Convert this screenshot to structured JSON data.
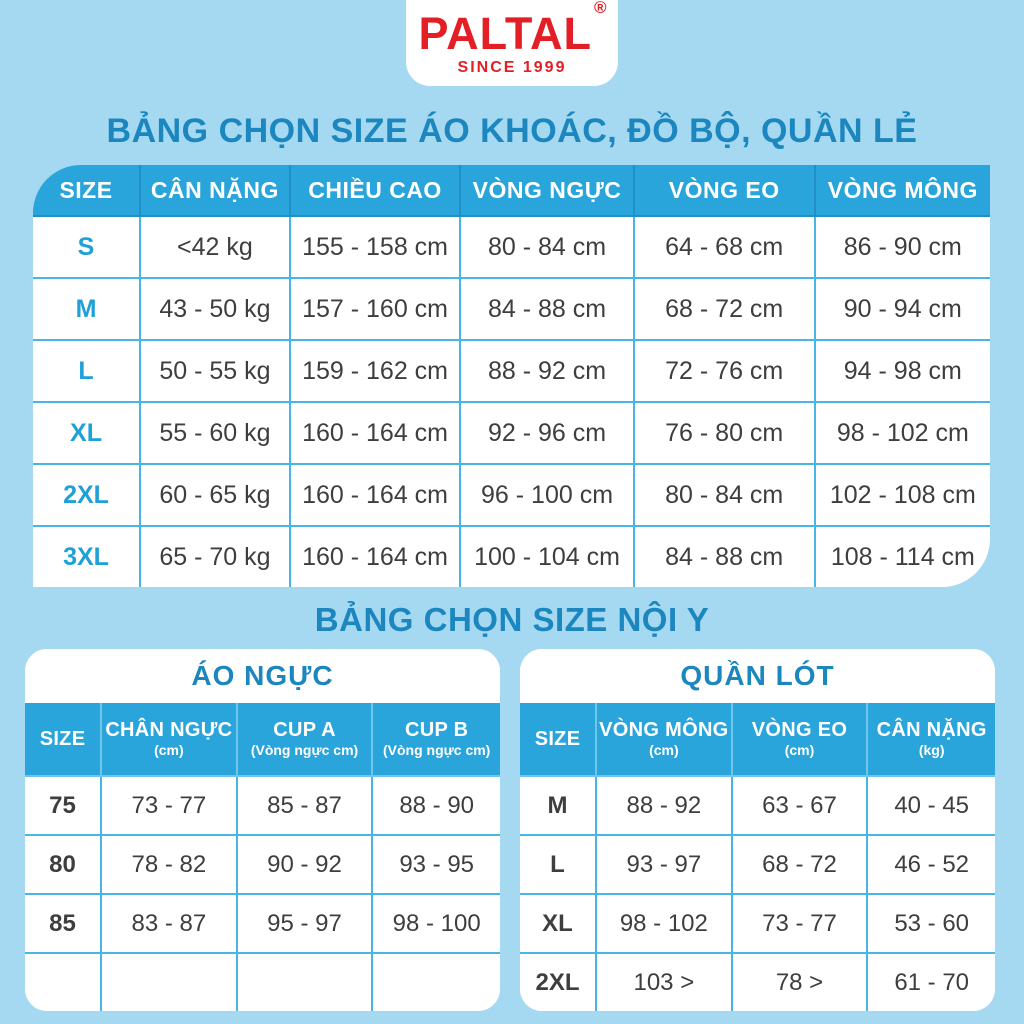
{
  "logo": {
    "brand": "PALTAL",
    "registered": "®",
    "tagline": "SINCE 1999"
  },
  "colors": {
    "background": "#A5D8F1",
    "header_blue": "#29A5DB",
    "title_blue": "#1C87BE",
    "size_label_blue": "#1FA0D6",
    "grid_line": "#49B5E5",
    "brand_red": "#E31E25",
    "cell_text": "#3E3E3E"
  },
  "main_table": {
    "title": "BẢNG CHỌN SIZE ÁO KHOÁC, ĐỒ BỘ, QUẦN LẺ",
    "headers": [
      "SIZE",
      "CÂN NẶNG",
      "CHIỀU CAO",
      "VÒNG NGỰC",
      "VÒNG EO",
      "VÒNG MÔNG"
    ],
    "rows": [
      {
        "size": "S",
        "values": [
          "<42 kg",
          "155 - 158 cm",
          "80 - 84 cm",
          "64 - 68 cm",
          "86 - 90 cm"
        ]
      },
      {
        "size": "M",
        "values": [
          "43 - 50 kg",
          "157 - 160 cm",
          "84 - 88 cm",
          "68 - 72 cm",
          "90 - 94 cm"
        ]
      },
      {
        "size": "L",
        "values": [
          "50 - 55 kg",
          "159 - 162 cm",
          "88 - 92 cm",
          "72 - 76 cm",
          "94 - 98 cm"
        ]
      },
      {
        "size": "XL",
        "values": [
          "55 - 60 kg",
          "160 - 164 cm",
          "92 - 96 cm",
          "76 - 80 cm",
          "98 - 102 cm"
        ]
      },
      {
        "size": "2XL",
        "values": [
          "60 - 65 kg",
          "160 - 164 cm",
          "96 - 100 cm",
          "80 - 84 cm",
          "102 - 108 cm"
        ]
      },
      {
        "size": "3XL",
        "values": [
          "65 - 70 kg",
          "160 - 164 cm",
          "100 - 104 cm",
          "84 - 88 cm",
          "108 - 114 cm"
        ]
      }
    ]
  },
  "underwear_section": {
    "title": "BẢNG CHỌN SIZE NỘI Y",
    "bra_table": {
      "title": "ÁO NGỰC",
      "headers": [
        [
          "SIZE",
          ""
        ],
        [
          "CHÂN NGỰC",
          "(cm)"
        ],
        [
          "CUP A",
          "(Vòng ngực cm)"
        ],
        [
          "CUP B",
          "(Vòng ngực cm)"
        ]
      ],
      "rows": [
        {
          "size": "75",
          "values": [
            "73 - 77",
            "85 - 87",
            "88 - 90"
          ]
        },
        {
          "size": "80",
          "values": [
            "78 - 82",
            "90 - 92",
            "93 - 95"
          ]
        },
        {
          "size": "85",
          "values": [
            "83 - 87",
            "95 - 97",
            "98 - 100"
          ]
        },
        {
          "size": "",
          "values": [
            "",
            "",
            ""
          ]
        }
      ]
    },
    "panty_table": {
      "title": "QUẦN LÓT",
      "headers": [
        [
          "SIZE",
          ""
        ],
        [
          "VÒNG MÔNG",
          "(cm)"
        ],
        [
          "VÒNG EO",
          "(cm)"
        ],
        [
          "CÂN NẶNG",
          "(kg)"
        ]
      ],
      "rows": [
        {
          "size": "M",
          "values": [
            "88 - 92",
            "63 - 67",
            "40 - 45"
          ]
        },
        {
          "size": "L",
          "values": [
            "93 - 97",
            "68 - 72",
            "46 - 52"
          ]
        },
        {
          "size": "XL",
          "values": [
            "98 - 102",
            "73 - 77",
            "53 - 60"
          ]
        },
        {
          "size": "2XL",
          "values": [
            "103 >",
            "78 >",
            "61 - 70"
          ]
        }
      ]
    }
  }
}
